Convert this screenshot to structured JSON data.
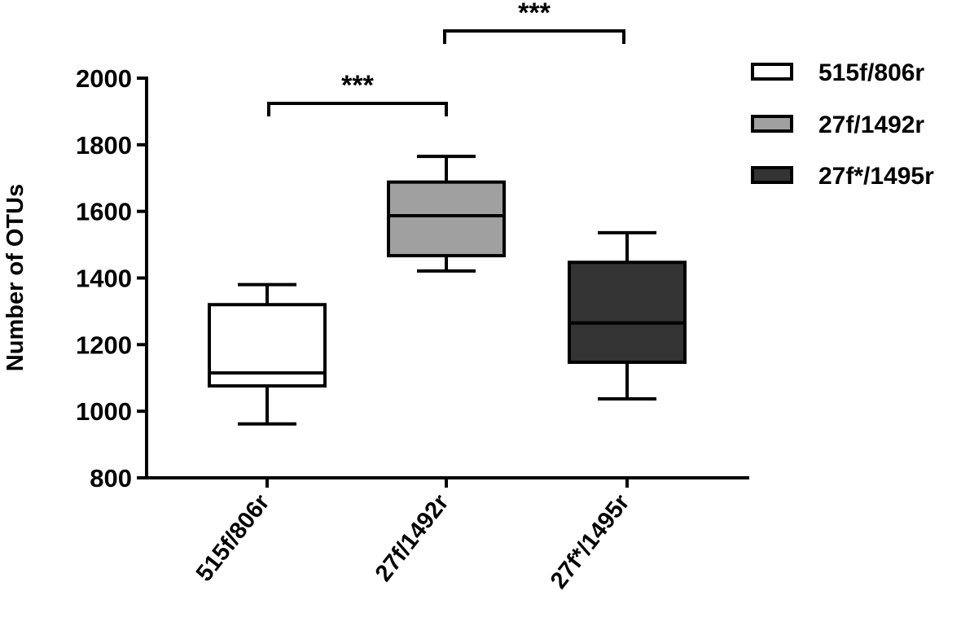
{
  "chart_data": {
    "type": "box",
    "title": "",
    "xlabel": "",
    "ylabel": "Number of OTUs",
    "ylim": [
      800,
      2000
    ],
    "yticks": [
      800,
      1000,
      1200,
      1400,
      1600,
      1800,
      2000
    ],
    "grid": false,
    "legend_position": "right",
    "categories": [
      "515f/806r",
      "27f/1492r",
      "27f*/1495r"
    ],
    "series": [
      {
        "name": "515f/806r",
        "color": "#ffffff",
        "whisker_low": 962,
        "q1": 1076,
        "median": 1115,
        "q3": 1320,
        "whisker_high": 1380
      },
      {
        "name": "27f/1492r",
        "color": "#a0a0a0",
        "whisker_low": 1421,
        "q1": 1467,
        "median": 1587,
        "q3": 1688,
        "whisker_high": 1765
      },
      {
        "name": "27f*/1495r",
        "color": "#333333",
        "whisker_low": 1037,
        "q1": 1147,
        "median": 1265,
        "q3": 1447,
        "whisker_high": 1536
      }
    ],
    "annotations": [
      {
        "from": "515f/806r",
        "to": "27f/1492r",
        "label": "***"
      },
      {
        "from": "27f/1492r",
        "to": "27f*/1495r",
        "label": "***"
      }
    ]
  }
}
